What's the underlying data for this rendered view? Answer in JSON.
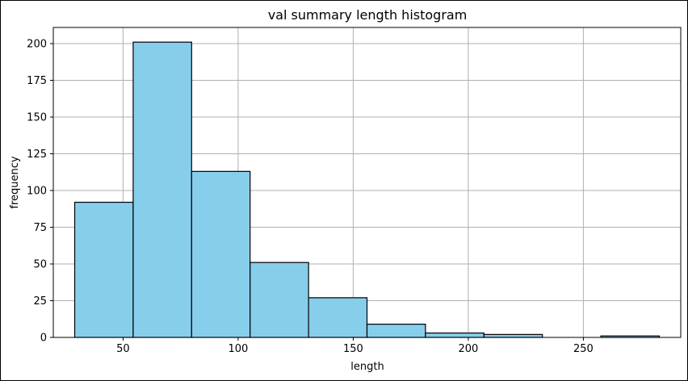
{
  "chart_data": {
    "type": "bar",
    "title": "val summary length histogram",
    "xlabel": "length",
    "ylabel": "frequency",
    "xlim": [
      19.7,
      292.3
    ],
    "ylim": [
      0,
      211
    ],
    "xticks": [
      50,
      100,
      150,
      200,
      250
    ],
    "yticks": [
      0,
      25,
      50,
      75,
      100,
      125,
      150,
      175,
      200
    ],
    "grid": true,
    "bar_color": "#87ceeb",
    "edge_color": "#000000",
    "grid_color": "#b0b0b0",
    "bin_edges": [
      29,
      54.4,
      79.8,
      105.2,
      130.6,
      156,
      181.4,
      206.8,
      232.2,
      257.6,
      283
    ],
    "values": [
      92,
      201,
      113,
      51,
      27,
      9,
      3,
      2,
      0,
      1
    ]
  }
}
